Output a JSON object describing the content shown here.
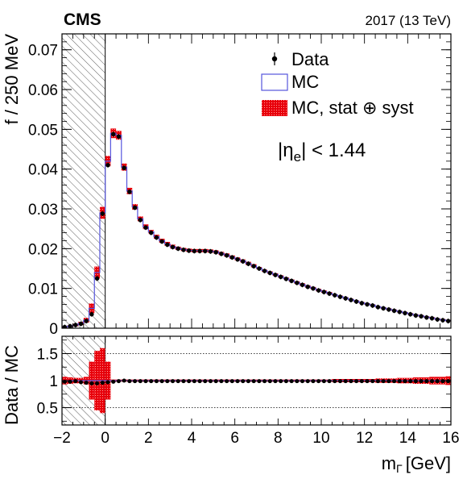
{
  "header": {
    "experiment": "CMS",
    "energy": "2017 (13 TeV)"
  },
  "chart_data": {
    "type": "histogram",
    "upper_panel": {
      "ylabel": "f / 250 MeV",
      "ylim": [
        0,
        0.074
      ],
      "yticks": [
        0,
        0.01,
        0.02,
        0.03,
        0.04,
        0.05,
        0.06,
        0.07
      ],
      "ytick_labels": [
        "0",
        "0.01",
        "0.02",
        "0.03",
        "0.04",
        "0.05",
        "0.06",
        "0.07"
      ]
    },
    "lower_panel": {
      "ylabel": "Data / MC",
      "ylim": [
        0.18,
        1.82
      ],
      "yticks": [
        0.5,
        1,
        1.5
      ],
      "ytick_labels": [
        "0.5",
        "1",
        "1.5"
      ],
      "reference_lines": [
        0.5,
        1,
        1.5
      ]
    },
    "xlabel": "m",
    "xlabel_sub": "Γ",
    "xlabel_unit": "[GeV]",
    "xlim": [
      -2,
      16
    ],
    "xticks": [
      -2,
      0,
      2,
      4,
      6,
      8,
      10,
      12,
      14,
      16
    ],
    "xtick_labels": [
      "−2",
      "0",
      "2",
      "4",
      "6",
      "8",
      "10",
      "12",
      "14",
      "16"
    ],
    "bin_width": 0.25,
    "hatched_region": [
      -2,
      0
    ],
    "annotation": "|η_e| < 1.44",
    "annotation_parts": {
      "left": "|η",
      "sub": "e",
      "right": "| < 1.44"
    },
    "legend": {
      "position": "top-right",
      "entries": [
        {
          "label": "Data",
          "style": "marker"
        },
        {
          "label": "MC",
          "style": "line",
          "color": "#5555dd"
        },
        {
          "label": "MC, stat ⊕ syst",
          "style": "band",
          "color": "#e8000b"
        }
      ]
    },
    "colors": {
      "mc_line": "#5555dd",
      "band": "#e8000b",
      "data": "#000000"
    },
    "series": [
      {
        "name": "MC",
        "values": [
          0.0003,
          0.0005,
          0.0008,
          0.0012,
          0.002,
          0.005,
          0.014,
          0.029,
          0.042,
          0.049,
          0.0485,
          0.0405,
          0.0345,
          0.0305,
          0.0275,
          0.0255,
          0.0242,
          0.023,
          0.022,
          0.0212,
          0.0205,
          0.0201,
          0.0198,
          0.0196,
          0.0195,
          0.0195,
          0.0195,
          0.0194,
          0.0192,
          0.0188,
          0.0184,
          0.0179,
          0.0174,
          0.0169,
          0.0163,
          0.0157,
          0.0151,
          0.0145,
          0.014,
          0.0135,
          0.013,
          0.0125,
          0.012,
          0.0115,
          0.011,
          0.0105,
          0.0101,
          0.0096,
          0.0092,
          0.0088,
          0.0084,
          0.008,
          0.0076,
          0.0072,
          0.0068,
          0.0064,
          0.0061,
          0.0058,
          0.0054,
          0.0051,
          0.0048,
          0.0045,
          0.0042,
          0.0039,
          0.0036,
          0.0033,
          0.0031,
          0.0028,
          0.0026,
          0.0023,
          0.0021,
          0.0019
        ]
      },
      {
        "name": "Data",
        "values": [
          0.0003,
          0.0005,
          0.0008,
          0.0011,
          0.0018,
          0.0035,
          0.0125,
          0.0288,
          0.041,
          0.0488,
          0.0482,
          0.0403,
          0.0343,
          0.0303,
          0.0272,
          0.0253,
          0.024,
          0.0228,
          0.0218,
          0.021,
          0.0204,
          0.02,
          0.0197,
          0.0195,
          0.0194,
          0.0194,
          0.0194,
          0.0193,
          0.0191,
          0.0187,
          0.0183,
          0.0178,
          0.0173,
          0.0168,
          0.0162,
          0.0156,
          0.015,
          0.0144,
          0.0139,
          0.0134,
          0.0129,
          0.0124,
          0.0119,
          0.0114,
          0.0109,
          0.0104,
          0.01,
          0.0095,
          0.0091,
          0.0087,
          0.0083,
          0.0079,
          0.0075,
          0.0071,
          0.0067,
          0.0063,
          0.006,
          0.0057,
          0.0053,
          0.005,
          0.0047,
          0.0044,
          0.0041,
          0.0038,
          0.0035,
          0.0032,
          0.003,
          0.0027,
          0.0025,
          0.0022,
          0.002,
          0.0018
        ]
      },
      {
        "name": "MC, stat ⊕ syst",
        "values": [
          0.0002,
          0.0002,
          0.0003,
          0.0004,
          0.0006,
          0.0012,
          0.0015,
          0.0015,
          0.0013,
          0.0012,
          0.0011,
          0.0009,
          0.0008,
          0.0007,
          0.0006,
          0.0006,
          0.0005,
          0.0005,
          0.0005,
          0.0005,
          0.0005,
          0.0004,
          0.0004,
          0.0004,
          0.0004,
          0.0004,
          0.0004,
          0.0004,
          0.0004,
          0.0004,
          0.0004,
          0.0004,
          0.0004,
          0.0004,
          0.0004,
          0.0004,
          0.0003,
          0.0003,
          0.0003,
          0.0003,
          0.0003,
          0.0003,
          0.0003,
          0.0003,
          0.0003,
          0.0003,
          0.0003,
          0.0003,
          0.0003,
          0.0003,
          0.0002,
          0.0002,
          0.0002,
          0.0002,
          0.0002,
          0.0002,
          0.0002,
          0.0002,
          0.0002,
          0.0002,
          0.0002,
          0.0002,
          0.0002,
          0.0002,
          0.0002,
          0.0002,
          0.0002,
          0.0002,
          0.0002,
          0.0002,
          0.0002,
          0.0002
        ]
      },
      {
        "name": "Data / MC",
        "values": [
          0.98,
          0.98,
          0.99,
          0.97,
          0.96,
          0.95,
          0.95,
          0.96,
          0.97,
          0.98,
          0.99,
          1.0,
          0.99,
          0.99,
          0.99,
          0.99,
          0.99,
          0.99,
          0.99,
          0.99,
          0.99,
          0.99,
          0.99,
          0.99,
          0.99,
          0.99,
          0.99,
          0.99,
          0.99,
          0.99,
          0.99,
          0.99,
          0.99,
          0.99,
          0.99,
          0.99,
          0.99,
          0.99,
          0.99,
          0.99,
          0.99,
          0.99,
          0.99,
          0.99,
          0.99,
          0.99,
          0.99,
          0.99,
          0.99,
          0.99,
          0.99,
          0.99,
          0.99,
          0.99,
          0.99,
          0.99,
          0.99,
          0.99,
          0.99,
          0.99,
          0.99,
          0.99,
          0.99,
          0.99,
          0.99,
          0.99,
          0.99,
          0.99,
          0.99,
          0.99,
          0.99,
          0.99
        ]
      },
      {
        "name": "MC band (ratio)",
        "values": [
          0.07,
          0.06,
          0.05,
          0.05,
          0.07,
          0.35,
          0.55,
          0.6,
          0.35,
          0.02,
          0.02,
          0.02,
          0.02,
          0.02,
          0.02,
          0.02,
          0.02,
          0.02,
          0.02,
          0.02,
          0.02,
          0.02,
          0.02,
          0.02,
          0.02,
          0.02,
          0.02,
          0.02,
          0.02,
          0.02,
          0.02,
          0.02,
          0.02,
          0.02,
          0.02,
          0.02,
          0.02,
          0.02,
          0.02,
          0.02,
          0.02,
          0.02,
          0.02,
          0.02,
          0.02,
          0.02,
          0.02,
          0.02,
          0.02,
          0.02,
          0.03,
          0.03,
          0.03,
          0.03,
          0.03,
          0.03,
          0.03,
          0.03,
          0.04,
          0.04,
          0.04,
          0.04,
          0.05,
          0.05,
          0.05,
          0.06,
          0.06,
          0.06,
          0.07,
          0.07,
          0.07,
          0.08
        ]
      }
    ]
  }
}
